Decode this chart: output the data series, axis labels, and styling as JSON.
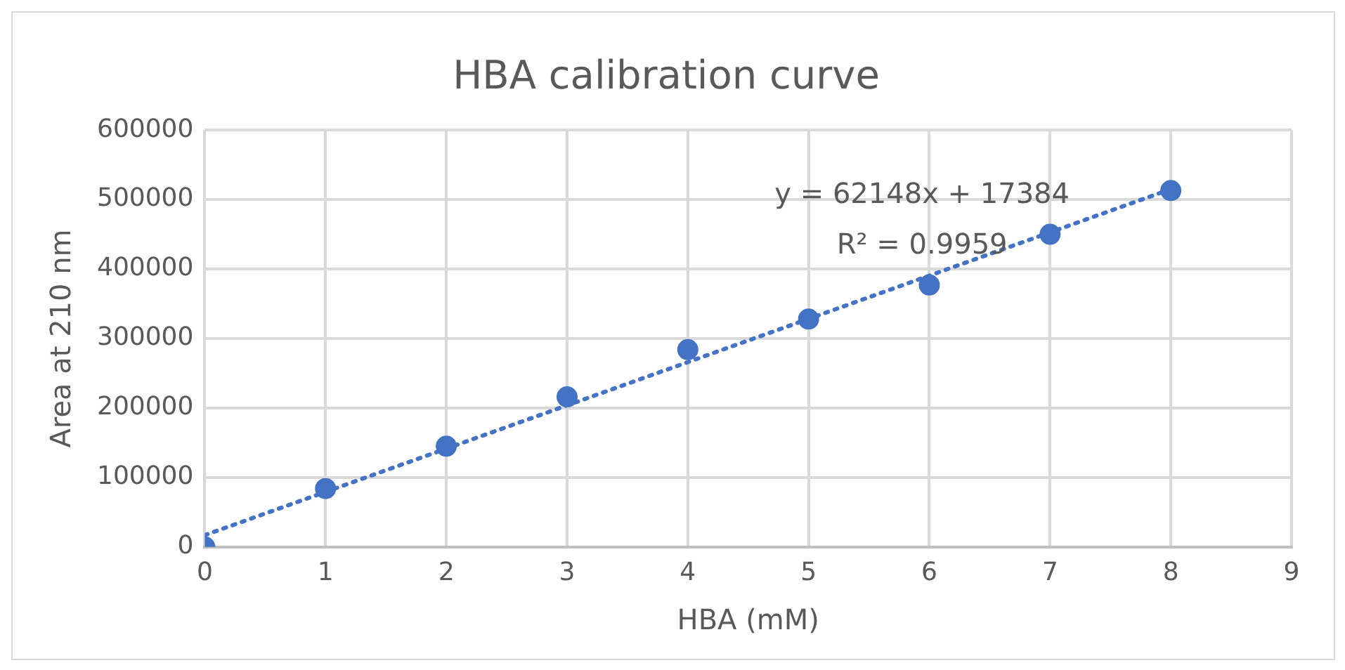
{
  "chart_data": {
    "type": "scatter",
    "title": "HBA calibration curve",
    "xlabel": "HBA (mM)",
    "ylabel": "Area at 210 nm",
    "x": [
      0,
      1,
      2,
      3,
      4,
      5,
      6,
      7,
      8
    ],
    "series": [
      {
        "color": "#4472c4",
        "marker": "circle",
        "values": [
          0,
          84000,
          145000,
          216000,
          284000,
          328000,
          377000,
          450000,
          513000
        ]
      },
      {
        "type": "line",
        "color": "#4472c4",
        "line_style": "dotted",
        "marker": "none",
        "x": [
          0,
          8
        ],
        "values": [
          17000,
          515000
        ]
      }
    ],
    "xlim": [
      0,
      9
    ],
    "xticks": [
      0,
      1,
      2,
      3,
      4,
      5,
      6,
      7,
      8,
      9
    ],
    "ylim": [
      0,
      600000
    ],
    "yticks": [
      0,
      100000,
      200000,
      300000,
      400000,
      500000,
      600000
    ],
    "grid": true,
    "legend": false,
    "annotations": [
      "y = 62148x + 17384",
      "R² = 0.9959"
    ]
  }
}
